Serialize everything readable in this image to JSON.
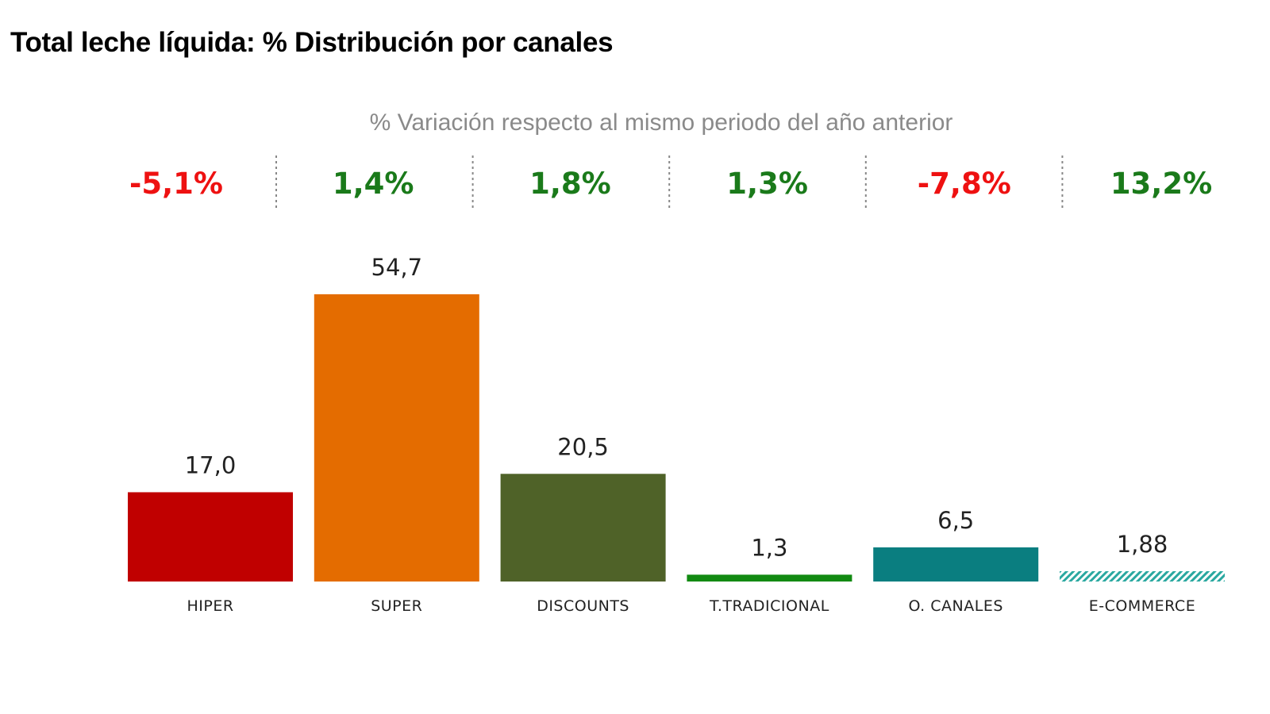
{
  "header": {
    "title": "Total leche líquida: % Distribución por canales",
    "subtitle": "% Variación respecto al mismo periodo del año anterior"
  },
  "colors": {
    "positive": "#1a7a1a",
    "negative": "#ee1111",
    "separator": "#888888"
  },
  "chart_data": {
    "type": "bar",
    "title": "Total leche líquida: % Distribución por canales",
    "subtitle": "% Variación respecto al mismo periodo del año anterior",
    "xlabel": "",
    "ylabel": "",
    "ylim": [
      0,
      60
    ],
    "grid": false,
    "categories": [
      "HIPER",
      "SUPER",
      "DISCOUNTS",
      "T.TRADICIONAL",
      "O. CANALES",
      "E-COMMERCE"
    ],
    "values": [
      17.0,
      54.7,
      20.5,
      1.3,
      6.5,
      1.88
    ],
    "value_labels": [
      "17,0",
      "54,7",
      "20,5",
      "1,3",
      "6,5",
      "1,88"
    ],
    "bar_colors": [
      "#c00000",
      "#e46c00",
      "#4f6228",
      "#128a12",
      "#0a7e80",
      "#2aa8a0"
    ],
    "bar_patterns": [
      "solid",
      "solid",
      "solid",
      "solid",
      "solid",
      "hatched"
    ],
    "variation": {
      "values": [
        -5.1,
        1.4,
        1.8,
        1.3,
        -7.8,
        13.2
      ],
      "labels": [
        "-5,1%",
        "1,4%",
        "1,8%",
        "1,3%",
        "-7,8%",
        "13,2%"
      ]
    }
  }
}
